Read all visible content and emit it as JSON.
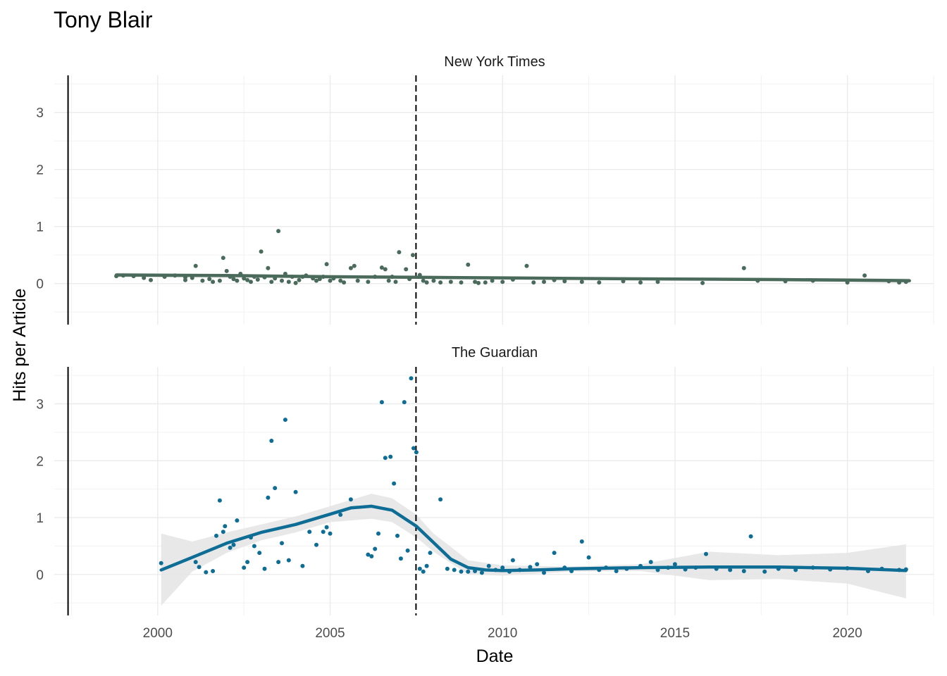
{
  "chart_data": {
    "type": "scatter",
    "title": "Tony Blair",
    "xlabel": "Date",
    "ylabel": "Hits per Article",
    "x_ticks": [
      "2000",
      "2005",
      "2010",
      "2015",
      "2020"
    ],
    "y_ticks": [
      "0",
      "1",
      "2",
      "3"
    ],
    "xlim": [
      1997.0,
      2022.5
    ],
    "ylim": [
      -0.72,
      3.65
    ],
    "grid": true,
    "reference_lines": {
      "solid_x": 1997.4,
      "dashed_x": 2007.49
    },
    "colors": {
      "nyt": "#4a6b5c",
      "guardian": "#0e6d95",
      "band": "#e5e5e5"
    },
    "facets": [
      {
        "name": "New York Times",
        "points": [
          [
            1998.8,
            0.13
          ],
          [
            1999,
            0.14
          ],
          [
            1999.3,
            0.13
          ],
          [
            1999.6,
            0.1
          ],
          [
            1999.8,
            0.06
          ],
          [
            2000.2,
            0.12
          ],
          [
            2000.5,
            0.14
          ],
          [
            2000.8,
            0.11
          ],
          [
            2000.8,
            0.06
          ],
          [
            2001,
            0.1
          ],
          [
            2001.1,
            0.31
          ],
          [
            2001.3,
            0.05
          ],
          [
            2001.5,
            0.08
          ],
          [
            2001.6,
            0.03
          ],
          [
            2001.8,
            0.05
          ],
          [
            2001.9,
            0.45
          ],
          [
            2002,
            0.22
          ],
          [
            2002.1,
            0.12
          ],
          [
            2002.2,
            0.08
          ],
          [
            2002.3,
            0.05
          ],
          [
            2002.4,
            0.17
          ],
          [
            2002.5,
            0.09
          ],
          [
            2002.6,
            0.06
          ],
          [
            2002.7,
            0.03
          ],
          [
            2002.8,
            0.12
          ],
          [
            2002.9,
            0.07
          ],
          [
            2003,
            0.56
          ],
          [
            2003.1,
            0.11
          ],
          [
            2003.2,
            0.27
          ],
          [
            2003.3,
            0.03
          ],
          [
            2003.4,
            0.09
          ],
          [
            2003.5,
            0.92
          ],
          [
            2003.6,
            0.05
          ],
          [
            2003.7,
            0.17
          ],
          [
            2003.8,
            0.03
          ],
          [
            2003.9,
            0.12
          ],
          [
            2004,
            0.01
          ],
          [
            2004.1,
            0.06
          ],
          [
            2004.2,
            0.12
          ],
          [
            2004.3,
            0.14
          ],
          [
            2004.5,
            0.09
          ],
          [
            2004.6,
            0.05
          ],
          [
            2004.7,
            0.08
          ],
          [
            2004.8,
            0.12
          ],
          [
            2004.9,
            0.34
          ],
          [
            2005,
            0.05
          ],
          [
            2005.1,
            0.09
          ],
          [
            2005.3,
            0.05
          ],
          [
            2005.4,
            0.02
          ],
          [
            2005.6,
            0.27
          ],
          [
            2005.7,
            0.31
          ],
          [
            2005.8,
            0.05
          ],
          [
            2006.1,
            0.03
          ],
          [
            2006.3,
            0.12
          ],
          [
            2006.5,
            0.28
          ],
          [
            2006.6,
            0.25
          ],
          [
            2006.7,
            0.05
          ],
          [
            2006.8,
            0.12
          ],
          [
            2006.9,
            0.03
          ],
          [
            2007,
            0.55
          ],
          [
            2007.2,
            0.25
          ],
          [
            2007.3,
            0.08
          ],
          [
            2007.4,
            0.5
          ],
          [
            2007.6,
            0.15
          ],
          [
            2007.7,
            0.05
          ],
          [
            2007.8,
            0.02
          ],
          [
            2008,
            0.05
          ],
          [
            2008.2,
            0.02
          ],
          [
            2008.5,
            0.03
          ],
          [
            2008.8,
            0.02
          ],
          [
            2009,
            0.33
          ],
          [
            2009.2,
            0.03
          ],
          [
            2009.3,
            0.01
          ],
          [
            2009.5,
            0.02
          ],
          [
            2009.7,
            0.05
          ],
          [
            2010,
            0.03
          ],
          [
            2010.3,
            0.07
          ],
          [
            2010.7,
            0.31
          ],
          [
            2010.9,
            0.02
          ],
          [
            2011.2,
            0.03
          ],
          [
            2011.5,
            0.06
          ],
          [
            2011.8,
            0.04
          ],
          [
            2012.3,
            0.03
          ],
          [
            2012.8,
            0.02
          ],
          [
            2013.5,
            0.04
          ],
          [
            2014,
            0.02
          ],
          [
            2014.5,
            0.03
          ],
          [
            2015.8,
            0.01
          ],
          [
            2017,
            0.27
          ],
          [
            2017.4,
            0.05
          ],
          [
            2018.2,
            0.04
          ],
          [
            2019,
            0.05
          ],
          [
            2020,
            0.02
          ],
          [
            2020.5,
            0.14
          ],
          [
            2021.2,
            0.04
          ],
          [
            2021.5,
            0.02
          ],
          [
            2021.7,
            0.03
          ]
        ],
        "smooth": [
          [
            1998.8,
            0.15
          ],
          [
            2002,
            0.14
          ],
          [
            2005,
            0.12
          ],
          [
            2007.5,
            0.11
          ],
          [
            2010,
            0.1
          ],
          [
            2012,
            0.09
          ],
          [
            2015,
            0.08
          ],
          [
            2018,
            0.07
          ],
          [
            2020,
            0.06
          ],
          [
            2021.8,
            0.05
          ]
        ],
        "band": {
          "upper": [
            [
              1998.8,
              0.19
            ],
            [
              2005,
              0.15
            ],
            [
              2010,
              0.12
            ],
            [
              2015,
              0.1
            ],
            [
              2021.8,
              0.09
            ]
          ],
          "lower": [
            [
              1998.8,
              0.11
            ],
            [
              2005,
              0.09
            ],
            [
              2010,
              0.08
            ],
            [
              2015,
              0.06
            ],
            [
              2021.8,
              0.01
            ]
          ]
        }
      },
      {
        "name": "The Guardian",
        "points": [
          [
            2000.1,
            0.2
          ],
          [
            2001.1,
            0.22
          ],
          [
            2001.2,
            0.13
          ],
          [
            2001.4,
            0.04
          ],
          [
            2001.6,
            0.06
          ],
          [
            2001.7,
            0.68
          ],
          [
            2001.8,
            1.3
          ],
          [
            2001.9,
            0.75
          ],
          [
            2001.95,
            0.85
          ],
          [
            2002.1,
            0.47
          ],
          [
            2002.2,
            0.52
          ],
          [
            2002.3,
            0.95
          ],
          [
            2002.5,
            0.12
          ],
          [
            2002.6,
            0.22
          ],
          [
            2002.7,
            0.65
          ],
          [
            2002.8,
            0.5
          ],
          [
            2002.95,
            0.38
          ],
          [
            2003.1,
            0.1
          ],
          [
            2003.2,
            1.35
          ],
          [
            2003.3,
            2.35
          ],
          [
            2003.4,
            1.52
          ],
          [
            2003.5,
            0.22
          ],
          [
            2003.6,
            0.55
          ],
          [
            2003.7,
            2.72
          ],
          [
            2003.8,
            0.25
          ],
          [
            2004,
            1.45
          ],
          [
            2004.2,
            0.15
          ],
          [
            2004.4,
            0.75
          ],
          [
            2004.6,
            0.52
          ],
          [
            2004.8,
            0.75
          ],
          [
            2004.9,
            0.83
          ],
          [
            2005,
            0.72
          ],
          [
            2005.3,
            1.05
          ],
          [
            2005.6,
            1.32
          ],
          [
            2006.1,
            0.35
          ],
          [
            2006.2,
            0.32
          ],
          [
            2006.3,
            0.45
          ],
          [
            2006.4,
            0.72
          ],
          [
            2006.5,
            3.03
          ],
          [
            2006.6,
            2.05
          ],
          [
            2006.75,
            2.07
          ],
          [
            2006.85,
            1.6
          ],
          [
            2006.95,
            0.68
          ],
          [
            2007.05,
            0.28
          ],
          [
            2007.15,
            3.03
          ],
          [
            2007.25,
            0.42
          ],
          [
            2007.35,
            3.45
          ],
          [
            2007.42,
            2.22
          ],
          [
            2007.5,
            2.15
          ],
          [
            2007.6,
            0.1
          ],
          [
            2007.7,
            0.05
          ],
          [
            2007.8,
            0.15
          ],
          [
            2007.9,
            0.38
          ],
          [
            2008.2,
            1.32
          ],
          [
            2008.4,
            0.1
          ],
          [
            2008.6,
            0.08
          ],
          [
            2008.8,
            0.05
          ],
          [
            2009,
            0.05
          ],
          [
            2009.2,
            0.06
          ],
          [
            2009.4,
            0.03
          ],
          [
            2009.6,
            0.15
          ],
          [
            2009.8,
            0.08
          ],
          [
            2010,
            0.12
          ],
          [
            2010.2,
            0.05
          ],
          [
            2010.3,
            0.25
          ],
          [
            2010.5,
            0.08
          ],
          [
            2010.8,
            0.13
          ],
          [
            2011,
            0.18
          ],
          [
            2011.2,
            0.03
          ],
          [
            2011.5,
            0.38
          ],
          [
            2011.8,
            0.12
          ],
          [
            2012,
            0.06
          ],
          [
            2012.3,
            0.58
          ],
          [
            2012.5,
            0.3
          ],
          [
            2012.8,
            0.08
          ],
          [
            2013,
            0.12
          ],
          [
            2013.3,
            0.06
          ],
          [
            2013.6,
            0.1
          ],
          [
            2014,
            0.15
          ],
          [
            2014.3,
            0.22
          ],
          [
            2014.5,
            0.08
          ],
          [
            2014.8,
            0.12
          ],
          [
            2015,
            0.18
          ],
          [
            2015.3,
            0.09
          ],
          [
            2015.6,
            0.12
          ],
          [
            2015.9,
            0.36
          ],
          [
            2016.2,
            0.1
          ],
          [
            2016.6,
            0.08
          ],
          [
            2017,
            0.06
          ],
          [
            2017.2,
            0.67
          ],
          [
            2017.6,
            0.05
          ],
          [
            2018,
            0.1
          ],
          [
            2018.5,
            0.08
          ],
          [
            2019,
            0.12
          ],
          [
            2019.5,
            0.09
          ],
          [
            2020,
            0.11
          ],
          [
            2020.6,
            0.06
          ],
          [
            2021,
            0.1
          ],
          [
            2021.5,
            0.08
          ],
          [
            2021.7,
            0.09
          ]
        ],
        "smooth": [
          [
            2000.1,
            0.08
          ],
          [
            2001,
            0.3
          ],
          [
            2002,
            0.55
          ],
          [
            2003,
            0.74
          ],
          [
            2004,
            0.88
          ],
          [
            2005,
            1.06
          ],
          [
            2005.6,
            1.17
          ],
          [
            2006.2,
            1.2
          ],
          [
            2006.8,
            1.13
          ],
          [
            2007.5,
            0.85
          ],
          [
            2008,
            0.56
          ],
          [
            2008.5,
            0.27
          ],
          [
            2009,
            0.12
          ],
          [
            2009.5,
            0.08
          ],
          [
            2010,
            0.07
          ],
          [
            2011,
            0.08
          ],
          [
            2012,
            0.1
          ],
          [
            2014,
            0.12
          ],
          [
            2016,
            0.13
          ],
          [
            2018,
            0.13
          ],
          [
            2020,
            0.11
          ],
          [
            2021.7,
            0.07
          ]
        ],
        "band": {
          "upper": [
            [
              2000.1,
              0.72
            ],
            [
              2001,
              0.58
            ],
            [
              2002,
              0.74
            ],
            [
              2003,
              0.88
            ],
            [
              2004,
              1.02
            ],
            [
              2005,
              1.2
            ],
            [
              2006.2,
              1.42
            ],
            [
              2006.8,
              1.34
            ],
            [
              2007.5,
              1.05
            ],
            [
              2008,
              0.72
            ],
            [
              2009,
              0.25
            ],
            [
              2010,
              0.16
            ],
            [
              2012,
              0.14
            ],
            [
              2014,
              0.18
            ],
            [
              2016,
              0.4
            ],
            [
              2018,
              0.34
            ],
            [
              2020,
              0.38
            ],
            [
              2021.7,
              0.53
            ]
          ],
          "lower": [
            [
              2000.1,
              -0.55
            ],
            [
              2001,
              0.05
            ],
            [
              2002,
              0.38
            ],
            [
              2003,
              0.6
            ],
            [
              2004,
              0.74
            ],
            [
              2005,
              0.92
            ],
            [
              2006.2,
              0.98
            ],
            [
              2006.8,
              0.92
            ],
            [
              2007.5,
              0.65
            ],
            [
              2008,
              0.4
            ],
            [
              2009,
              0.0
            ],
            [
              2010,
              -0.02
            ],
            [
              2012,
              0.05
            ],
            [
              2014,
              0.06
            ],
            [
              2016,
              -0.1
            ],
            [
              2018,
              -0.08
            ],
            [
              2020,
              -0.16
            ],
            [
              2021.7,
              -0.42
            ]
          ]
        }
      }
    ]
  }
}
